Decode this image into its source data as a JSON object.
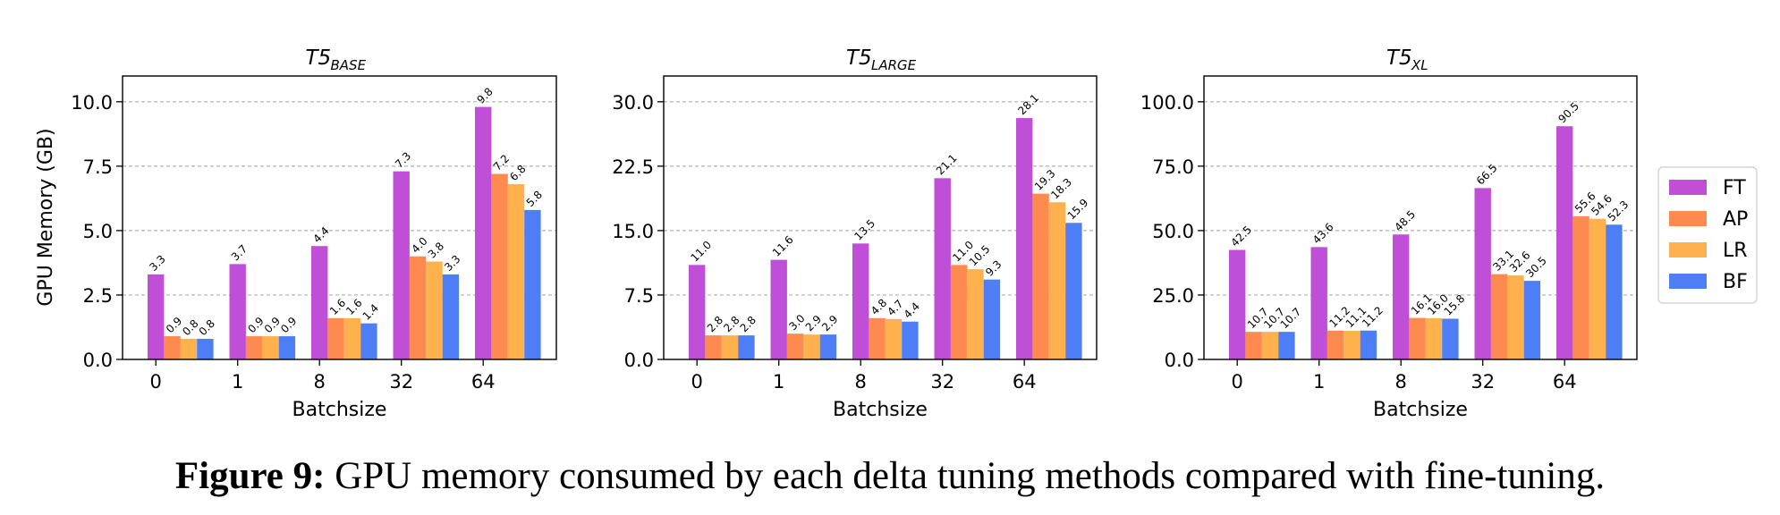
{
  "chart_data": [
    {
      "type": "bar",
      "title": "T5",
      "title_subscript": "BASE",
      "categories": [
        "0",
        "1",
        "8",
        "32",
        "64"
      ],
      "series": [
        {
          "name": "FT",
          "values": [
            3.3,
            3.7,
            4.4,
            7.3,
            9.8
          ]
        },
        {
          "name": "AP",
          "values": [
            0.9,
            0.9,
            1.6,
            4.0,
            7.2
          ]
        },
        {
          "name": "LR",
          "values": [
            0.8,
            0.9,
            1.6,
            3.8,
            6.8
          ]
        },
        {
          "name": "BF",
          "values": [
            0.8,
            0.9,
            1.4,
            3.3,
            5.8
          ]
        }
      ],
      "xlabel": "Batchsize",
      "ylabel": "GPU Memory (GB)",
      "ylim": [
        0,
        11.0
      ],
      "yticks": [
        "0.0",
        "2.5",
        "5.0",
        "7.5",
        "10.0"
      ],
      "ytick_values": [
        0,
        2.5,
        5.0,
        7.5,
        10.0
      ],
      "grid": "horizontal dashed"
    },
    {
      "type": "bar",
      "title": "T5",
      "title_subscript": "LARGE",
      "categories": [
        "0",
        "1",
        "8",
        "32",
        "64"
      ],
      "series": [
        {
          "name": "FT",
          "values": [
            11.0,
            11.6,
            13.5,
            21.1,
            28.1
          ]
        },
        {
          "name": "AP",
          "values": [
            2.8,
            3.0,
            4.8,
            11.0,
            19.3
          ]
        },
        {
          "name": "LR",
          "values": [
            2.8,
            2.9,
            4.7,
            10.5,
            18.3
          ]
        },
        {
          "name": "BF",
          "values": [
            2.8,
            2.9,
            4.4,
            9.3,
            15.9
          ]
        }
      ],
      "xlabel": "Batchsize",
      "ylabel": "",
      "ylim": [
        0,
        33.0
      ],
      "yticks": [
        "0.0",
        "7.5",
        "15.0",
        "22.5",
        "30.0"
      ],
      "ytick_values": [
        0,
        7.5,
        15.0,
        22.5,
        30.0
      ],
      "grid": "horizontal dashed"
    },
    {
      "type": "bar",
      "title": "T5",
      "title_subscript": "XL",
      "categories": [
        "0",
        "1",
        "8",
        "32",
        "64"
      ],
      "series": [
        {
          "name": "FT",
          "values": [
            42.5,
            43.6,
            48.5,
            66.5,
            90.5
          ]
        },
        {
          "name": "AP",
          "values": [
            10.7,
            11.2,
            16.1,
            33.1,
            55.6
          ]
        },
        {
          "name": "LR",
          "values": [
            10.7,
            11.1,
            16.0,
            32.6,
            54.6
          ]
        },
        {
          "name": "BF",
          "values": [
            10.7,
            11.2,
            15.8,
            30.5,
            52.3
          ]
        }
      ],
      "xlabel": "Batchsize",
      "ylabel": "",
      "ylim": [
        0,
        110.0
      ],
      "yticks": [
        "0.0",
        "25.0",
        "50.0",
        "75.0",
        "100.0"
      ],
      "ytick_values": [
        0,
        25.0,
        50.0,
        75.0,
        100.0
      ],
      "grid": "horizontal dashed"
    }
  ],
  "legend": {
    "placement": "right",
    "entries": [
      "FT",
      "AP",
      "LR",
      "BF"
    ]
  },
  "colors": {
    "FT": "#bf4fd6",
    "AP": "#ff8a4f",
    "LR": "#ffb14e",
    "BF": "#4d7ef5"
  },
  "caption": {
    "label": "Figure 9:",
    "text": "GPU memory consumed by each delta tuning methods compared with fine-tuning."
  }
}
